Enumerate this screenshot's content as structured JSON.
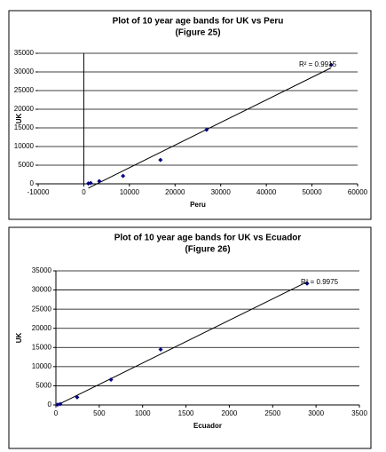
{
  "chart_data": [
    {
      "type": "scatter",
      "title": "Plot of 10 year age bands for UK vs Peru",
      "subtitle": "(Figure 25)",
      "x_label": "Peru",
      "y_label": "UK",
      "annotation": "R² = 0.9915",
      "trendline": true,
      "color": "#000080",
      "x": [
        1000,
        1500,
        3400,
        8600,
        16800,
        26900,
        54200
      ],
      "series": [
        {
          "name": "UK",
          "color": "#000080",
          "values": [
            100,
            200,
            700,
            2100,
            6400,
            14500,
            31900
          ]
        }
      ],
      "xlim": [
        -10000,
        60000
      ],
      "xticks": [
        -10000,
        0,
        10000,
        20000,
        30000,
        40000,
        50000,
        60000
      ],
      "ylim": [
        0,
        35000
      ],
      "yticks": [
        0,
        5000,
        10000,
        15000,
        20000,
        25000,
        30000,
        35000
      ],
      "grid": true
    },
    {
      "type": "scatter",
      "title": "Plot of 10 year age bands for UK vs Ecuador",
      "subtitle": "(Figure 26)",
      "x_label": "Ecuador",
      "y_label": "UK",
      "annotation": "R² = 0.9975",
      "trendline": true,
      "color": "#000080",
      "x": [
        20,
        50,
        245,
        635,
        1208,
        2897
      ],
      "series": [
        {
          "name": "UK",
          "color": "#000080",
          "values": [
            100,
            230,
            2000,
            6600,
            14500,
            31700
          ]
        }
      ],
      "xlim": [
        0,
        3500
      ],
      "xticks": [
        0,
        500,
        1000,
        1500,
        2000,
        2500,
        3000,
        3500
      ],
      "ylim": [
        0,
        35000
      ],
      "yticks": [
        0,
        5000,
        10000,
        15000,
        20000,
        25000,
        30000,
        35000
      ],
      "grid": true
    }
  ]
}
